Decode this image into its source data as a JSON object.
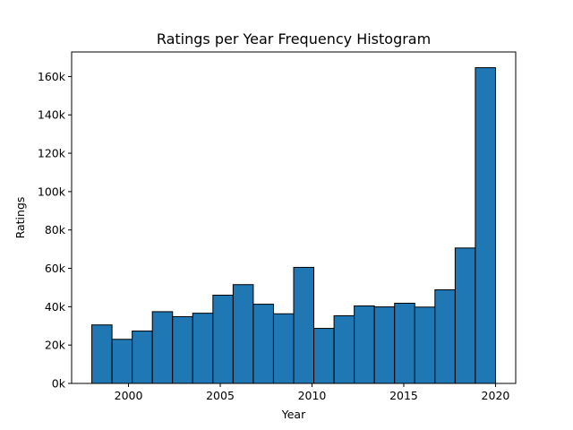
{
  "chart_data": {
    "type": "bar",
    "histogram": true,
    "title": "Ratings per Year Frequency Histogram",
    "xlabel": "Year",
    "ylabel": "Ratings",
    "bin_edges": [
      1998.0,
      1999.1,
      2000.2,
      2001.3,
      2002.4,
      2003.5,
      2004.6,
      2005.7,
      2006.8,
      2007.9,
      2009.0,
      2010.1,
      2011.2,
      2012.3,
      2013.4,
      2014.5,
      2015.6,
      2016.7,
      2017.8,
      2018.9,
      2020.0
    ],
    "values": [
      30500,
      23000,
      27300,
      37400,
      34800,
      36600,
      46000,
      51500,
      41300,
      36300,
      60500,
      28700,
      35300,
      40400,
      39900,
      41800,
      39800,
      48800,
      70600,
      164600
    ],
    "xlim": [
      1996.9,
      2021.1
    ],
    "ylim": [
      0,
      172800
    ],
    "xticks": [
      2000,
      2005,
      2010,
      2015,
      2020
    ],
    "xtick_labels": [
      "2000",
      "2005",
      "2010",
      "2015",
      "2020"
    ],
    "yticks": [
      0,
      20000,
      40000,
      60000,
      80000,
      100000,
      120000,
      140000,
      160000
    ],
    "ytick_labels": [
      "0k",
      "20k",
      "40k",
      "60k",
      "80k",
      "100k",
      "120k",
      "140k",
      "160k"
    ],
    "bar_color": "#1f77b4",
    "edge_color": "#000000",
    "grid": false,
    "legend": "none"
  }
}
